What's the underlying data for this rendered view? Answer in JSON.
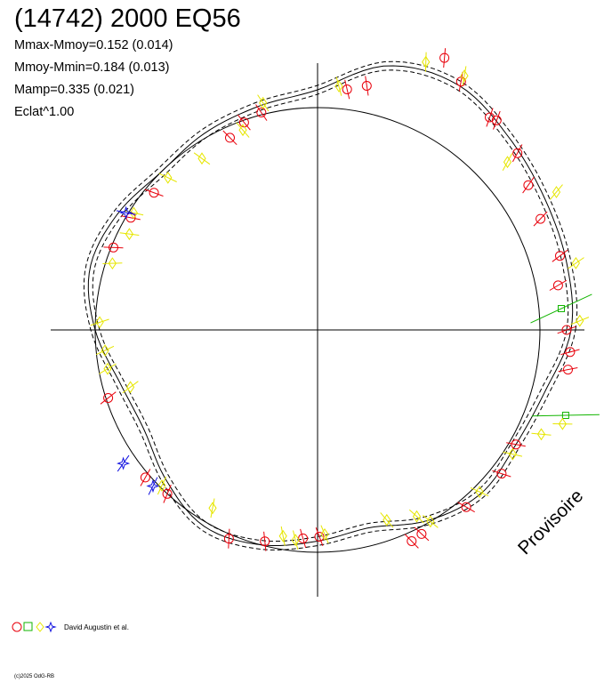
{
  "header": {
    "title": "(14742) 2000 EQ56",
    "stats": [
      "Mmax-Mmoy=0.152 (0.014)",
      "Mmoy-Mmin=0.184 (0.013)",
      "Mamp=0.335 (0.021)",
      "Eclat^1.00"
    ]
  },
  "watermark": "Provisoire",
  "legend": {
    "label": "David Augustin et al.",
    "symbols": [
      "red-circle",
      "green-square",
      "yellow-diamond",
      "blue-star"
    ]
  },
  "credit": "(c)2025 OdG-RB",
  "colors": {
    "circle": "#e8000b",
    "square": "#12b500",
    "diamond": "#e6e600",
    "star": "#1010e0",
    "curve": "#000000"
  },
  "chart_data": {
    "type": "scatter",
    "projection": "polar",
    "title": "(14742) 2000 EQ56",
    "reference_circle_radius": 1.0,
    "axes": {
      "cross": true,
      "range": [
        -1.2,
        1.2
      ]
    },
    "fit_curve": {
      "name": "",
      "angles_deg": [
        0,
        15,
        30,
        45,
        60,
        75,
        90,
        105,
        120,
        135,
        150,
        165,
        180,
        195,
        210,
        225,
        240,
        255,
        270,
        285,
        300,
        315,
        330,
        345
      ],
      "radii": [
        1.14,
        1.16,
        1.18,
        1.22,
        1.27,
        1.23,
        1.08,
        1.04,
        1.02,
        1.0,
        1.04,
        1.06,
        1.0,
        0.92,
        0.9,
        0.96,
        1.02,
        1.0,
        0.95,
        0.92,
        0.99,
        1.04,
        1.03,
        1.06
      ],
      "band": 0.02
    },
    "series": [
      {
        "symbol": "circle",
        "points": [
          [
            0.0,
            1.12
          ],
          [
            10.5,
            1.1
          ],
          [
            17.0,
            1.14
          ],
          [
            26.5,
            1.12
          ],
          [
            34.5,
            1.15
          ],
          [
            41.5,
            1.2
          ],
          [
            49.5,
            1.24
          ],
          [
            51.0,
            1.23
          ],
          [
            60.0,
            1.29
          ],
          [
            65.0,
            1.35
          ],
          [
            78.6,
            1.12
          ],
          [
            83.0,
            1.09
          ],
          [
            104.5,
            1.01
          ],
          [
            109.5,
            0.99
          ],
          [
            114.5,
            0.95
          ],
          [
            140.0,
            0.96
          ],
          [
            149.0,
            0.98
          ],
          [
            158.0,
            0.99
          ],
          [
            198.0,
            0.99
          ],
          [
            220.6,
            1.02
          ],
          [
            227.5,
            1.0
          ],
          [
            247.0,
            1.02
          ],
          [
            256.0,
            0.98
          ],
          [
            266.0,
            0.94
          ],
          [
            270.5,
            0.93
          ],
          [
            294.0,
            1.04
          ],
          [
            297.0,
            1.03
          ],
          [
            310.0,
            1.04
          ],
          [
            322.0,
            1.05
          ],
          [
            330.0,
            1.03
          ],
          [
            351.0,
            1.14
          ],
          [
            355.0,
            1.14
          ]
        ]
      },
      {
        "symbol": "square",
        "points": [
          [
            5.0,
            1.1
          ],
          [
            341.0,
            1.18
          ]
        ]
      },
      {
        "symbol": "diamond",
        "points": [
          [
            2.0,
            1.18
          ],
          [
            14.5,
            1.2
          ],
          [
            30.0,
            1.24
          ],
          [
            41.5,
            1.14
          ],
          [
            60.0,
            1.32
          ],
          [
            68.0,
            1.3
          ],
          [
            85.0,
            1.1
          ],
          [
            103.5,
            1.05
          ],
          [
            110.5,
            0.96
          ],
          [
            124.0,
            0.93
          ],
          [
            134.5,
            0.96
          ],
          [
            147.5,
            0.98
          ],
          [
            153.0,
            0.95
          ],
          [
            162.0,
            0.97
          ],
          [
            178.0,
            0.98
          ],
          [
            185.5,
            0.96
          ],
          [
            190.5,
            0.96
          ],
          [
            197.0,
            0.88
          ],
          [
            225.0,
            0.99
          ],
          [
            239.5,
            0.93
          ],
          [
            260.5,
            0.94
          ],
          [
            264.0,
            0.95
          ],
          [
            272.0,
            0.92
          ],
          [
            290.0,
            0.91
          ],
          [
            298.0,
            0.95
          ],
          [
            300.5,
            1.0
          ],
          [
            315.0,
            1.03
          ],
          [
            327.5,
            1.04
          ],
          [
            335.0,
            1.11
          ],
          [
            339.0,
            1.18
          ]
        ]
      },
      {
        "symbol": "star",
        "points": [
          [
            148.5,
            1.01
          ],
          [
            214.5,
            1.06
          ],
          [
            223.5,
            1.02
          ]
        ]
      }
    ]
  }
}
